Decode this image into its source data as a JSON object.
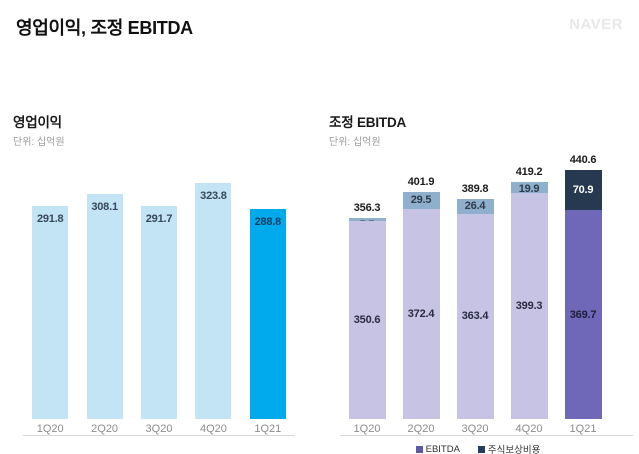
{
  "header": {
    "title": "영업이익, 조정 EBITDA",
    "logo": "NAVER"
  },
  "chart_data": [
    {
      "type": "bar",
      "title": "영업이익",
      "unit": "단위: 십억원",
      "categories": [
        "1Q20",
        "2Q20",
        "3Q20",
        "4Q20",
        "1Q21"
      ],
      "values": [
        291.8,
        308.1,
        291.7,
        323.8,
        288.8
      ],
      "bar_colors": [
        "#c3e4f4",
        "#c3e4f4",
        "#c3e4f4",
        "#c3e4f4",
        "#00aaec"
      ],
      "label_colors": [
        "#37485a",
        "#37485a",
        "#37485a",
        "#37485a",
        "#123f63"
      ],
      "ylim": [
        0,
        340
      ],
      "grid": false,
      "value_label_position": "inside-top",
      "highlight_index": 4
    },
    {
      "type": "bar",
      "stacked": true,
      "title": "조정 EBITDA",
      "unit": "단위: 십억원",
      "categories": [
        "1Q20",
        "2Q20",
        "3Q20",
        "4Q20",
        "1Q21"
      ],
      "series": [
        {
          "name": "EBITDA",
          "values": [
            350.6,
            372.4,
            363.4,
            399.3,
            369.7
          ],
          "colors": [
            "#c6c3e4",
            "#c6c3e4",
            "#c6c3e4",
            "#c6c3e4",
            "#6f68b8"
          ],
          "label_colors": [
            "#2b2b40",
            "#2b2b40",
            "#2b2b40",
            "#2b2b40",
            "#1e1e38"
          ]
        },
        {
          "name": "주식보상비용",
          "values": [
            5.7,
            29.5,
            26.4,
            19.9,
            70.9
          ],
          "colors": [
            "#8fb0cc",
            "#8fb0cc",
            "#8fb0cc",
            "#8fb0cc",
            "#273951"
          ],
          "label_colors": [
            "#3a3a4a",
            "#2f3a4a",
            "#2f3a4a",
            "#2f3a4a",
            "#ffffff"
          ]
        }
      ],
      "totals": [
        356.3,
        401.9,
        389.8,
        419.2,
        440.6
      ],
      "ylim": [
        0,
        460
      ],
      "grid": false,
      "value_label_position": "inside-center",
      "highlight_index": 4,
      "legend": {
        "position": "bottom",
        "items": [
          {
            "label": "EBITDA",
            "color": "#5e58a8"
          },
          {
            "label": "주식보상비용",
            "color": "#263b5e"
          }
        ]
      }
    }
  ]
}
